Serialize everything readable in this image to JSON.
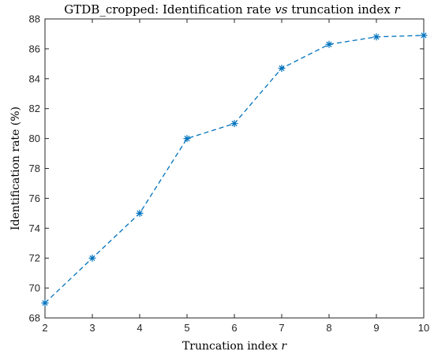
{
  "chart_data": {
    "type": "line",
    "title": {
      "prefix": "GTDB_cropped: Identification rate ",
      "vs": "vs",
      "middle": " truncation index ",
      "var": "r"
    },
    "xlabel": {
      "text": "Truncation index ",
      "var": "r"
    },
    "ylabel": "Identification rate (%)",
    "xlim": [
      2,
      10
    ],
    "ylim": [
      68,
      88
    ],
    "xticks": [
      2,
      3,
      4,
      5,
      6,
      7,
      8,
      9,
      10
    ],
    "yticks": [
      68,
      70,
      72,
      74,
      76,
      78,
      80,
      82,
      84,
      86,
      88
    ],
    "grid": false,
    "legend": "none",
    "series": [
      {
        "x": [
          2,
          3,
          4,
          5,
          6,
          7,
          8,
          9,
          10
        ],
        "y": [
          69.0,
          72.0,
          75.0,
          80.0,
          81.0,
          84.7,
          86.3,
          86.8,
          86.9
        ],
        "color": "#0072BD",
        "line_style": "dashed",
        "marker": "asterisk"
      }
    ]
  }
}
